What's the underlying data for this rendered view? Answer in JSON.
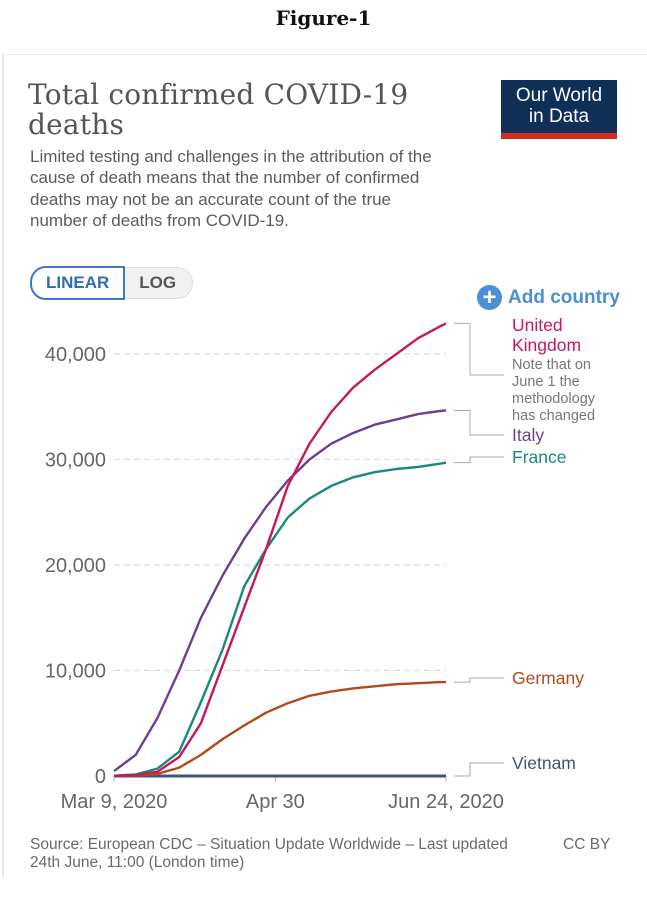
{
  "figure_label": "Figure-1",
  "header": {
    "title": "Total confirmed COVID-19 deaths",
    "subtitle": "Limited testing and challenges in the attribution of the cause of death means that the number of confirmed deaths may not be an accurate count of the true number of deaths from COVID-19.",
    "logo_line1": "Our World",
    "logo_line2": "in Data"
  },
  "controls": {
    "scale_options": [
      "LINEAR",
      "LOG"
    ],
    "selected_scale": "LINEAR",
    "add_country_label": "Add country",
    "add_country_icon": "plus-circle-icon"
  },
  "colors": {
    "united_kingdom": "#c8175e",
    "italy": "#6d3e91",
    "france": "#18897b",
    "germany": "#b2491b",
    "vietnam": "#3f5573",
    "grid": "#dddddd",
    "logo_bg": "#0f2f57",
    "logo_bar": "#d42b21",
    "accent": "#3c7ac0"
  },
  "chart_data": {
    "type": "line",
    "title": "Total confirmed COVID-19 deaths",
    "xlabel": "",
    "ylabel": "",
    "x_start_date": "2020-03-09",
    "x_unit": "days since Mar 9, 2020",
    "x_range": [
      0,
      107
    ],
    "x_ticks": [
      {
        "day": 0,
        "label": "Mar 9, 2020"
      },
      {
        "day": 52,
        "label": "Apr 30"
      },
      {
        "day": 107,
        "label": "Jun 24, 2020"
      }
    ],
    "ylim": [
      0,
      43000
    ],
    "y_ticks": [
      {
        "value": 0,
        "label": "0"
      },
      {
        "value": 10000,
        "label": "10,000"
      },
      {
        "value": 20000,
        "label": "20,000"
      },
      {
        "value": 30000,
        "label": "30,000"
      },
      {
        "value": 40000,
        "label": "40,000"
      }
    ],
    "grid": "horizontal dashed",
    "legend": "right (end-of-line labels)",
    "x": [
      0,
      7,
      14,
      21,
      28,
      35,
      42,
      49,
      56,
      63,
      70,
      77,
      84,
      91,
      98,
      105,
      107
    ],
    "series": [
      {
        "name": "United Kingdom",
        "key": "united_kingdom",
        "note": "Note that on June 1 the methodology has changed",
        "values": [
          0,
          100,
          400,
          1800,
          5000,
          10500,
          16000,
          21500,
          27500,
          31500,
          34500,
          36800,
          38500,
          40000,
          41500,
          42600,
          42900
        ]
      },
      {
        "name": "Italy",
        "key": "italy",
        "values": [
          460,
          2000,
          5500,
          10000,
          15000,
          19000,
          22500,
          25500,
          28000,
          30000,
          31500,
          32500,
          33300,
          33800,
          34300,
          34600,
          34650
        ]
      },
      {
        "name": "France",
        "key": "france",
        "values": [
          25,
          150,
          700,
          2300,
          7000,
          12000,
          18000,
          21500,
          24500,
          26300,
          27500,
          28300,
          28800,
          29100,
          29300,
          29600,
          29700
        ]
      },
      {
        "name": "Germany",
        "key": "germany",
        "values": [
          2,
          30,
          200,
          800,
          2000,
          3500,
          4800,
          6000,
          6900,
          7600,
          8000,
          8300,
          8500,
          8700,
          8800,
          8900,
          8900
        ]
      },
      {
        "name": "Vietnam",
        "key": "vietnam",
        "values": [
          0,
          0,
          0,
          0,
          0,
          0,
          0,
          0,
          0,
          0,
          0,
          0,
          0,
          0,
          0,
          0,
          0
        ]
      }
    ]
  },
  "footer": {
    "source": "Source: European CDC – Situation Update Worldwide – Last updated 24th June, 11:00 (London time)",
    "license": "CC BY"
  }
}
